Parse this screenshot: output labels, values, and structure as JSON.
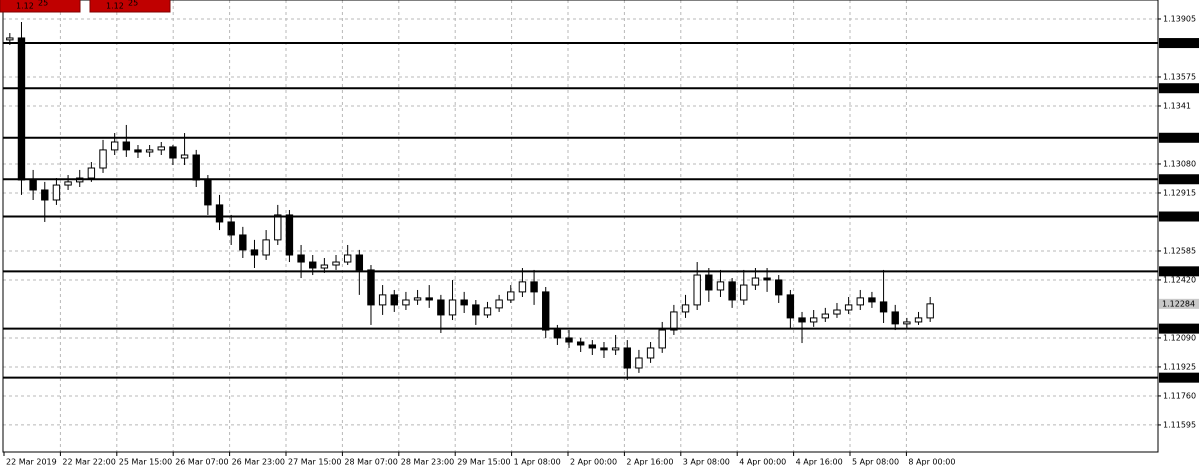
{
  "chart_data": {
    "type": "candlestick",
    "ylim": [
      1.11441,
      1.14013
    ],
    "yticks": [
      1.13905,
      1.13575,
      1.1341,
      {
        "value": 1.1308,
        "label": "1.13080"
      },
      1.12915,
      1.12585,
      {
        "value": 1.1242,
        "label": "1.12420"
      },
      {
        "value": 1.1209,
        "label": "1.12090"
      },
      1.11925,
      {
        "value": 1.1176,
        "label": "1.11760"
      },
      1.11595
    ],
    "x_labels": [
      "22 Mar 2019",
      "22 Mar 22:00",
      "25 Mar 15:00",
      "26 Mar 07:00",
      "26 Mar 23:00",
      "27 Mar 15:00",
      "28 Mar 07:00",
      "28 Mar 23:00",
      "29 Mar 15:00",
      "1 Apr 08:00",
      "2 Apr 00:00",
      "2 Apr 16:00",
      "3 Apr 08:00",
      "4 Apr 00:00",
      "4 Apr 16:00",
      "5 Apr 08:00",
      "8 Apr 00:00"
    ],
    "open": [
      1.13786,
      1.13797,
      1.12989,
      1.12932,
      1.12875,
      1.1296,
      1.12978,
      1.13,
      1.13057,
      1.1316,
      1.13205,
      1.1316,
      1.13148,
      1.1316,
      1.13177,
      1.13114,
      1.13131,
      1.12989,
      1.12847,
      1.1275,
      1.12676,
      1.12591,
      1.12562,
      1.12648,
      1.1279,
      1.12562,
      1.12522,
      1.12488,
      1.12505,
      1.12522,
      1.12562,
      1.12477,
      1.12278,
      1.12335,
      1.12278,
      1.12306,
      1.12318,
      1.12306,
      1.12221,
      1.12306,
      1.12278,
      1.12221,
      1.12261,
      1.12306,
      1.12352,
      1.12409,
      1.12352,
      1.12135,
      1.1209,
      1.12067,
      1.1205,
      1.12033,
      1.12022,
      1.12033,
      1.11919,
      1.11976,
      1.12033,
      1.12135,
      1.12238,
      1.12278,
      1.12448,
      1.12363,
      1.12409,
      1.12306,
      1.12391,
      1.12431,
      1.1242,
      1.12335,
      1.12204,
      1.12181,
      1.12204,
      1.12226,
      1.12249,
      1.12278,
      1.12318,
      1.12295,
      1.12238,
      1.1217,
      1.12181,
      1.12204
    ],
    "high": [
      1.13825,
      1.13888,
      1.13046,
      1.12978,
      1.13,
      1.13017,
      1.13046,
      1.13091,
      1.13217,
      1.13256,
      1.13302,
      1.13188,
      1.13188,
      1.13205,
      1.13188,
      1.13256,
      1.1316,
      1.13017,
      1.12904,
      1.1279,
      1.12722,
      1.12648,
      1.12704,
      1.12847,
      1.12818,
      1.12619,
      1.12562,
      1.12545,
      1.12562,
      1.12619,
      1.12591,
      1.12505,
      1.12391,
      1.12363,
      1.12352,
      1.12363,
      1.12391,
      1.12335,
      1.1242,
      1.12352,
      1.12306,
      1.12295,
      1.12335,
      1.12391,
      1.12488,
      1.12477,
      1.1238,
      1.12164,
      1.12135,
      1.1209,
      1.12078,
      1.12067,
      1.12107,
      1.12078,
      1.12022,
      1.12067,
      1.12181,
      1.12278,
      1.12335,
      1.12522,
      1.12488,
      1.12477,
      1.12431,
      1.12477,
      1.12488,
      1.12488,
      1.12448,
      1.12363,
      1.12238,
      1.12249,
      1.12261,
      1.12289,
      1.12323,
      1.12363,
      1.12352,
      1.12477,
      1.12278,
      1.12204,
      1.12238,
      1.12323
    ],
    "low": [
      1.13757,
      1.12904,
      1.12875,
      1.1275,
      1.12847,
      1.12932,
      1.12949,
      1.12978,
      1.13029,
      1.13131,
      1.1312,
      1.13114,
      1.1312,
      1.13131,
      1.13074,
      1.13074,
      1.12949,
      1.1279,
      1.12704,
      1.12619,
      1.12545,
      1.12488,
      1.12534,
      1.12619,
      1.12522,
      1.12431,
      1.12448,
      1.1246,
      1.12477,
      1.12505,
      1.12335,
      1.12164,
      1.12221,
      1.12238,
      1.12249,
      1.12278,
      1.12261,
      1.12118,
      1.12192,
      1.12232,
      1.12164,
      1.12204,
      1.12238,
      1.12289,
      1.12323,
      1.12278,
      1.1209,
      1.1205,
      1.12033,
      1.1201,
      1.11993,
      1.11976,
      1.11993,
      1.11851,
      1.11891,
      1.11948,
      1.12005,
      1.12107,
      1.12204,
      1.12249,
      1.12295,
      1.12323,
      1.12261,
      1.12278,
      1.12363,
      1.12352,
      1.12289,
      1.12147,
      1.12061,
      1.12153,
      1.12181,
      1.12204,
      1.12226,
      1.12249,
      1.12261,
      1.12175,
      1.12135,
      1.12147,
      1.12164,
      1.12181
    ],
    "close": [
      1.13797,
      1.12989,
      1.12932,
      1.12875,
      1.1296,
      1.12978,
      1.13,
      1.13057,
      1.1316,
      1.13205,
      1.1316,
      1.13148,
      1.1316,
      1.13177,
      1.13114,
      1.13131,
      1.12989,
      1.12847,
      1.1275,
      1.12676,
      1.12591,
      1.12562,
      1.12648,
      1.1279,
      1.12562,
      1.12522,
      1.12488,
      1.12505,
      1.12522,
      1.12562,
      1.12477,
      1.12278,
      1.12335,
      1.12278,
      1.12306,
      1.12318,
      1.12306,
      1.12221,
      1.12306,
      1.12278,
      1.12221,
      1.12261,
      1.12306,
      1.12352,
      1.12409,
      1.12352,
      1.12135,
      1.1209,
      1.12067,
      1.1205,
      1.12033,
      1.12022,
      1.12033,
      1.11919,
      1.11976,
      1.12033,
      1.12135,
      1.12238,
      1.12278,
      1.12448,
      1.12363,
      1.12409,
      1.12306,
      1.12391,
      1.12431,
      1.1242,
      1.12335,
      1.12204,
      1.12181,
      1.12204,
      1.12226,
      1.12249,
      1.12278,
      1.12318,
      1.12295,
      1.12238,
      1.1217,
      1.12181,
      1.12204,
      1.12284
    ],
    "levels": [
      1.13768,
      1.13511,
      1.13229,
      1.12993,
      1.12781,
      1.12469,
      1.12143,
      1.11864
    ],
    "current_price": 1.12284,
    "grid": true,
    "bull_color": "#ffffff",
    "bear_color": "#000000",
    "line_color": "#000000"
  },
  "trade_buttons": [
    {
      "prefix": "1.12",
      "big": "25"
    },
    {
      "prefix": "1.12",
      "big": "25"
    }
  ]
}
